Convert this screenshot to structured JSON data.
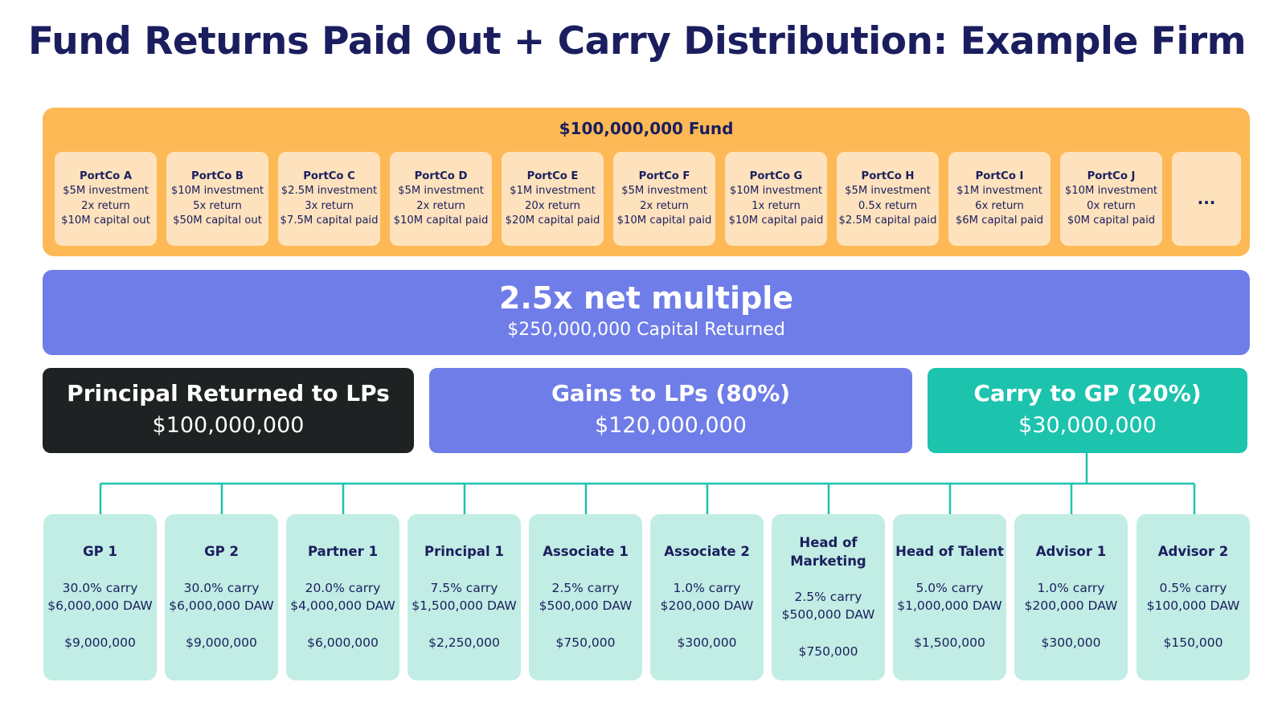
{
  "title": "Fund Returns Paid Out + Carry Distribution: Example Firm",
  "fund": {
    "label": "$100,000,000 Fund",
    "portcos": [
      {
        "name": "PortCo A",
        "investment": "$5M investment",
        "return": "2x return",
        "capital": "$10M capital out"
      },
      {
        "name": "PortCo B",
        "investment": "$10M investment",
        "return": "5x return",
        "capital": "$50M capital out"
      },
      {
        "name": "PortCo C",
        "investment": "$2.5M investment",
        "return": "3x return",
        "capital": "$7.5M capital paid"
      },
      {
        "name": "PortCo D",
        "investment": "$5M investment",
        "return": "2x return",
        "capital": "$10M capital paid"
      },
      {
        "name": "PortCo E",
        "investment": "$1M investment",
        "return": "20x return",
        "capital": "$20M capital paid"
      },
      {
        "name": "PortCo F",
        "investment": "$5M investment",
        "return": "2x return",
        "capital": "$10M capital paid"
      },
      {
        "name": "PortCo G",
        "investment": "$10M investment",
        "return": "1x return",
        "capital": "$10M capital paid"
      },
      {
        "name": "PortCo H",
        "investment": "$5M investment",
        "return": "0.5x return",
        "capital": "$2.5M capital paid"
      },
      {
        "name": "PortCo I",
        "investment": "$1M investment",
        "return": "6x return",
        "capital": "$6M capital paid"
      },
      {
        "name": "PortCo J",
        "investment": "$10M investment",
        "return": "0x return",
        "capital": "$0M capital paid"
      }
    ],
    "more": "..."
  },
  "net": {
    "multiple": "2.5x net multiple",
    "returned": "$250,000,000 Capital Returned"
  },
  "splits": {
    "principal": {
      "label": "Principal Returned to LPs",
      "value": "$100,000,000"
    },
    "gains": {
      "label": "Gains to LPs (80%)",
      "value": "$120,000,000"
    },
    "carry": {
      "label": "Carry to GP (20%)",
      "value": "$30,000,000"
    }
  },
  "members": [
    {
      "name": "GP 1",
      "carry": "30.0% carry",
      "daw": "$6,000,000 DAW",
      "total": "$9,000,000"
    },
    {
      "name": "GP 2",
      "carry": "30.0% carry",
      "daw": "$6,000,000 DAW",
      "total": "$9,000,000"
    },
    {
      "name": "Partner 1",
      "carry": "20.0% carry",
      "daw": "$4,000,000 DAW",
      "total": "$6,000,000"
    },
    {
      "name": "Principal 1",
      "carry": "7.5% carry",
      "daw": "$1,500,000 DAW",
      "total": "$2,250,000"
    },
    {
      "name": "Associate 1",
      "carry": "2.5% carry",
      "daw": "$500,000 DAW",
      "total": "$750,000"
    },
    {
      "name": "Associate 2",
      "carry": "1.0% carry",
      "daw": "$200,000 DAW",
      "total": "$300,000"
    },
    {
      "name": "Head of Marketing",
      "carry": "2.5% carry",
      "daw": "$500,000 DAW",
      "total": "$750,000"
    },
    {
      "name": "Head of Talent",
      "carry": "5.0% carry",
      "daw": "$1,000,000 DAW",
      "total": "$1,500,000"
    },
    {
      "name": "Advisor 1",
      "carry": "1.0% carry",
      "daw": "$200,000 DAW",
      "total": "$300,000"
    },
    {
      "name": "Advisor 2",
      "carry": "0.5% carry",
      "daw": "$100,000 DAW",
      "total": "$150,000"
    }
  ],
  "colors": {
    "title": "#1b1e5e",
    "fund_bg": "#fdb955",
    "portco_bg": "#fde2bd",
    "net_bg": "#6f7de8",
    "principal_bg": "#1f2222",
    "carry_bg": "#1cc3ad",
    "member_bg": "#c1ede4",
    "connector": "#1cc3ad"
  }
}
